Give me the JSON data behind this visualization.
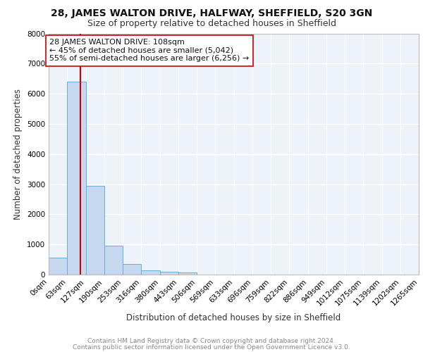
{
  "title": "28, JAMES WALTON DRIVE, HALFWAY, SHEFFIELD, S20 3GN",
  "subtitle": "Size of property relative to detached houses in Sheffield",
  "xlabel": "Distribution of detached houses by size in Sheffield",
  "ylabel": "Number of detached properties",
  "property_size": 108,
  "bin_edges": [
    0,
    63,
    127,
    190,
    253,
    316,
    380,
    443,
    506,
    569,
    633,
    696,
    759,
    822,
    886,
    949,
    1012,
    1075,
    1139,
    1202,
    1265
  ],
  "bar_heights": [
    550,
    6400,
    2950,
    950,
    360,
    150,
    90,
    75,
    0,
    0,
    0,
    0,
    0,
    0,
    0,
    0,
    0,
    0,
    0,
    0
  ],
  "bar_color": "#c5d8f0",
  "bar_edge_color": "#6aaed6",
  "red_line_color": "#cc0000",
  "annotation_text": "28 JAMES WALTON DRIVE: 108sqm\n← 45% of detached houses are smaller (5,042)\n55% of semi-detached houses are larger (6,256) →",
  "annotation_box_color": "#ffffff",
  "annotation_box_edge": "#cc0000",
  "ylim": [
    0,
    8000
  ],
  "yticks": [
    0,
    1000,
    2000,
    3000,
    4000,
    5000,
    6000,
    7000,
    8000
  ],
  "footer1": "Contains HM Land Registry data © Crown copyright and database right 2024.",
  "footer2": "Contains public sector information licensed under the Open Government Licence v3.0.",
  "bg_color": "#eef2f9",
  "grid_color": "#ffffff",
  "title_fontsize": 10,
  "subtitle_fontsize": 9,
  "axis_label_fontsize": 8.5,
  "tick_fontsize": 7.5,
  "annotation_fontsize": 8,
  "footer_fontsize": 6.5
}
